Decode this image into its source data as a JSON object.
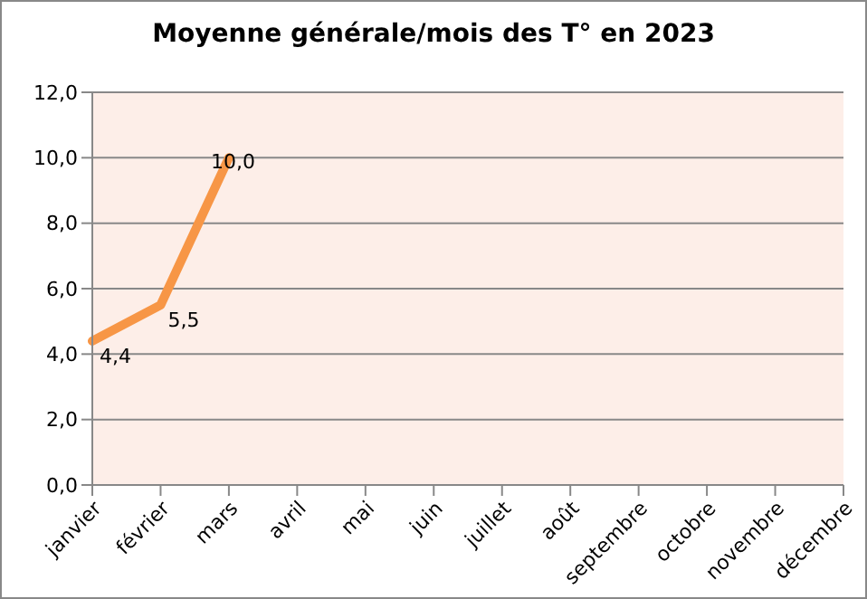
{
  "chart_data": {
    "type": "line",
    "title": "Moyenne générale/mois des T° en 2023",
    "categories": [
      "janvier",
      "février",
      "mars",
      "avril",
      "mai",
      "juin",
      "juillet",
      "août",
      "septembre",
      "octobre",
      "novembre",
      "décembre"
    ],
    "values": [
      4.4,
      5.5,
      10.0,
      null,
      null,
      null,
      null,
      null,
      null,
      null,
      null,
      null
    ],
    "value_labels": [
      "4,4",
      "5,5",
      "10,0",
      null,
      null,
      null,
      null,
      null,
      null,
      null,
      null,
      null
    ],
    "color": "#f79646",
    "ylim": [
      0,
      12
    ],
    "yticks": [
      {
        "value": 0,
        "label": "0,0"
      },
      {
        "value": 2,
        "label": "2,0"
      },
      {
        "value": 4,
        "label": "4,0"
      },
      {
        "value": 6,
        "label": "6,0"
      },
      {
        "value": 8,
        "label": "8,0"
      },
      {
        "value": 10,
        "label": "10,0"
      },
      {
        "value": 12,
        "label": "12,0"
      }
    ],
    "grid": "y",
    "legend": false,
    "marker": "none",
    "line_style": "solid"
  }
}
